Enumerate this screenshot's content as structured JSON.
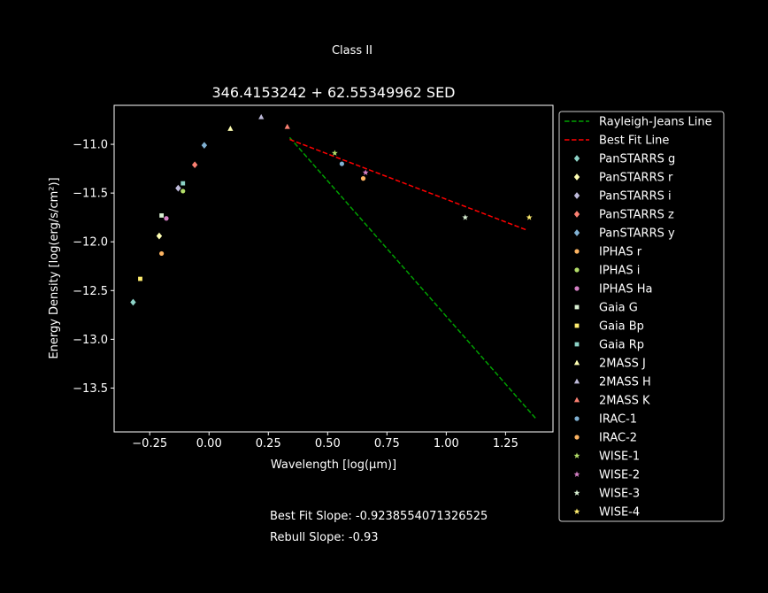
{
  "suptitle": "Class II",
  "slope_text": "Best Fit Slope: -0.9238554071326525",
  "rebull_text": "Rebull Slope: -0.93",
  "chart_data": {
    "type": "scatter",
    "title": "346.4153242 + 62.55349962 SED",
    "xlabel": "Wavelength [log(μm)]",
    "ylabel": "Energy Density [log(erg/s/cm²)]",
    "xlim": [
      -0.4,
      1.45
    ],
    "ylim": [
      -13.95,
      -10.6
    ],
    "xticks": [
      -0.25,
      0.0,
      0.25,
      0.5,
      0.75,
      1.0,
      1.25
    ],
    "xtick_labels": [
      "−0.25",
      "0.00",
      "0.25",
      "0.50",
      "0.75",
      "1.00",
      "1.25"
    ],
    "yticks": [
      -11.0,
      -11.5,
      -12.0,
      -12.5,
      -13.0,
      -13.5
    ],
    "ytick_labels": [
      "−11.0",
      "−11.5",
      "−12.0",
      "−12.5",
      "−13.0",
      "−13.5"
    ],
    "grid": false,
    "legend_position": "outside-right",
    "lines": [
      {
        "name": "Rayleigh-Jeans Line",
        "color": "#00a000",
        "style": "dashed",
        "x": [
          0.34,
          1.38
        ],
        "y": [
          -10.93,
          -13.82
        ]
      },
      {
        "name": "Best Fit Line",
        "color": "#ff0000",
        "style": "dashed",
        "x": [
          0.34,
          1.34
        ],
        "y": [
          -10.95,
          -11.88
        ]
      }
    ],
    "series": [
      {
        "name": "PanSTARRS g",
        "marker": "diamond",
        "color": "#8dd3c7",
        "x": -0.32,
        "y": -12.62
      },
      {
        "name": "PanSTARRS r",
        "marker": "diamond",
        "color": "#ffffb3",
        "x": -0.21,
        "y": -11.94
      },
      {
        "name": "PanSTARRS i",
        "marker": "diamond",
        "color": "#bebada",
        "x": -0.13,
        "y": -11.45
      },
      {
        "name": "PanSTARRS z",
        "marker": "diamond",
        "color": "#fb8072",
        "x": -0.06,
        "y": -11.21
      },
      {
        "name": "PanSTARRS y",
        "marker": "diamond",
        "color": "#80b1d3",
        "x": -0.02,
        "y": -11.01
      },
      {
        "name": "IPHAS r",
        "marker": "circle",
        "color": "#fdb462",
        "x": -0.2,
        "y": -12.12
      },
      {
        "name": "IPHAS i",
        "marker": "circle",
        "color": "#b3de69",
        "x": -0.11,
        "y": -11.48
      },
      {
        "name": "IPHAS Ha",
        "marker": "circle",
        "color": "#d580c5",
        "x": -0.18,
        "y": -11.76
      },
      {
        "name": "Gaia G",
        "marker": "square",
        "color": "#d9f0d3",
        "x": -0.2,
        "y": -11.73
      },
      {
        "name": "Gaia Bp",
        "marker": "square",
        "color": "#ffed6f",
        "x": -0.29,
        "y": -12.38
      },
      {
        "name": "Gaia Rp",
        "marker": "square",
        "color": "#8dd3c7",
        "x": -0.11,
        "y": -11.4
      },
      {
        "name": "2MASS J",
        "marker": "triangle",
        "color": "#ffffb3",
        "x": 0.09,
        "y": -10.84
      },
      {
        "name": "2MASS H",
        "marker": "triangle",
        "color": "#bebada",
        "x": 0.22,
        "y": -10.72
      },
      {
        "name": "2MASS K",
        "marker": "triangle",
        "color": "#fb8072",
        "x": 0.33,
        "y": -10.82
      },
      {
        "name": "IRAC-1",
        "marker": "circle",
        "color": "#80b1d3",
        "x": 0.56,
        "y": -11.2
      },
      {
        "name": "IRAC-2",
        "marker": "circle",
        "color": "#fdb462",
        "x": 0.65,
        "y": -11.35
      },
      {
        "name": "WISE-1",
        "marker": "star",
        "color": "#b3de69",
        "x": 0.53,
        "y": -11.09
      },
      {
        "name": "WISE-2",
        "marker": "star",
        "color": "#d580c5",
        "x": 0.66,
        "y": -11.29
      },
      {
        "name": "WISE-3",
        "marker": "star",
        "color": "#d9f0d3",
        "x": 1.08,
        "y": -11.75
      },
      {
        "name": "WISE-4",
        "marker": "star",
        "color": "#ffed6f",
        "x": 1.35,
        "y": -11.75
      }
    ]
  }
}
